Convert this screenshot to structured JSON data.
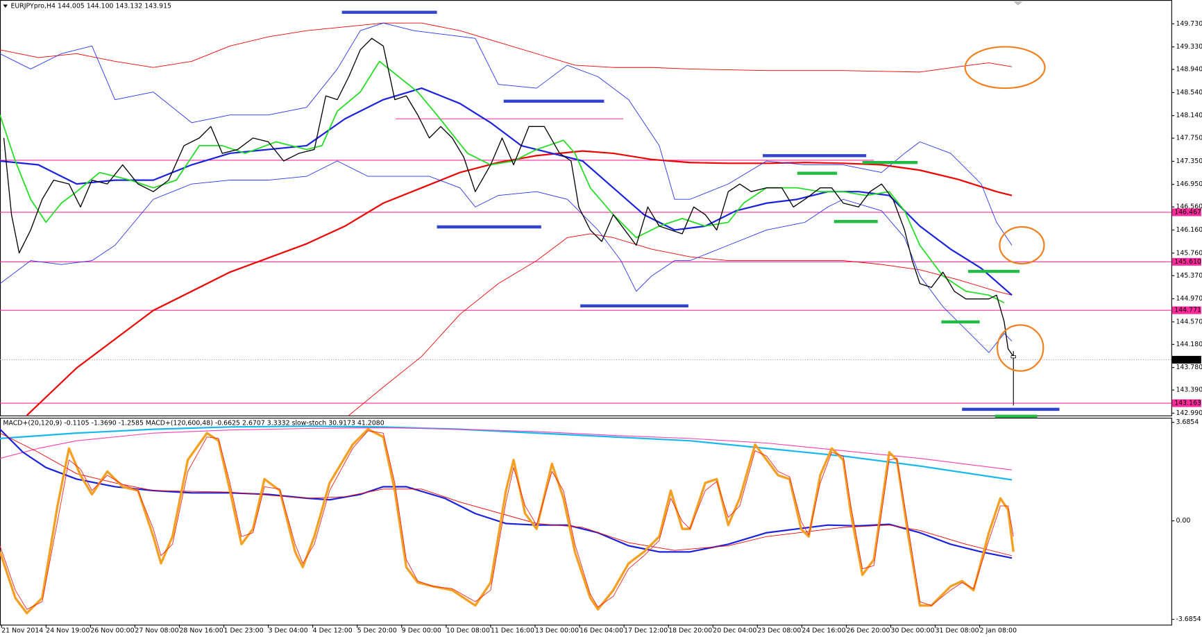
{
  "header": {
    "chart_info": "EURJPYpro,H4  144.005 144.100 143.132 143.915"
  },
  "price_axis": {
    "labels": [
      "149.730",
      "149.330",
      "148.940",
      "148.540",
      "148.140",
      "147.750",
      "147.350",
      "146.950",
      "146.560",
      "146.160",
      "145.760",
      "145.370",
      "144.970",
      "144.570",
      "144.180",
      "143.780",
      "143.390",
      "142.990"
    ]
  },
  "price_tags": [
    "146.467",
    "145.610",
    "144.771",
    "143.163"
  ],
  "current_price": "143.915",
  "indicator": {
    "header": "MACD+(20,120,9) -0.1105 -1.3690 -1.2585  MACD+(120,600,48) -0.6625 2.6707 3.3332  slow-stoch 30.9173 41.2080",
    "axis_labels": [
      "3.6854",
      "0.00",
      "-3.6854"
    ]
  },
  "time_axis": [
    "21 Nov 2014",
    "24 Nov 19:00",
    "26 Nov 00:00",
    "27 Nov 08:00",
    "28 Nov 16:00",
    "1 Dec 23:00",
    "3 Dec 04:00",
    "4 Dec 12:00",
    "5 Dec 20:00",
    "9 Dec 00:00",
    "10 Dec 08:00",
    "11 Dec 16:00",
    "13 Dec 00:00",
    "16 Dec 04:00",
    "17 Dec 12:00",
    "18 Dec 20:00",
    "20 Dec 04:00",
    "23 Dec 08:00",
    "24 Dec 16:00",
    "26 Dec 20:00",
    "30 Dec 00:00",
    "31 Dec 08:00",
    "2 Jan 08:00"
  ]
}
